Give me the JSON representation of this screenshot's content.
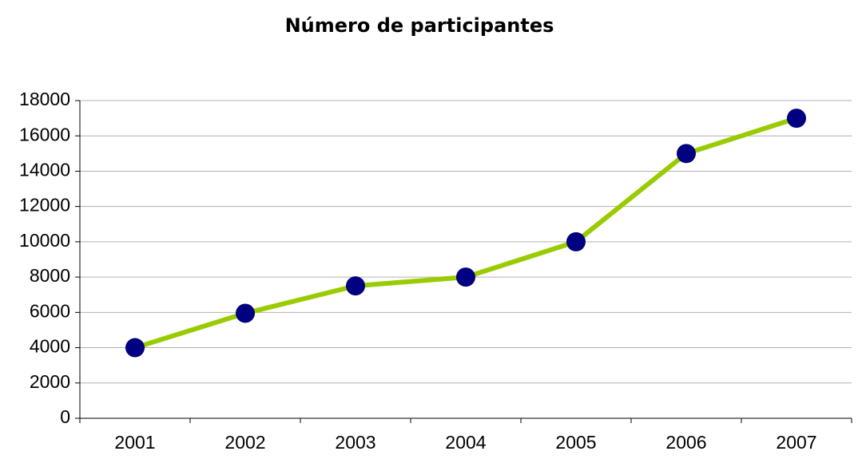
{
  "chart_data": {
    "type": "line",
    "title": "Número de participantes",
    "categories": [
      "2001",
      "2002",
      "2003",
      "2004",
      "2005",
      "2006",
      "2007"
    ],
    "series": [
      {
        "values": [
          4000,
          5950,
          7500,
          8000,
          10000,
          15000,
          17000
        ],
        "color": "#99cc00",
        "marker_color": "#000080"
      }
    ],
    "ylim": [
      0,
      18000
    ],
    "yticks": [
      0,
      2000,
      4000,
      6000,
      8000,
      10000,
      12000,
      14000,
      16000,
      18000
    ],
    "grid": true
  }
}
